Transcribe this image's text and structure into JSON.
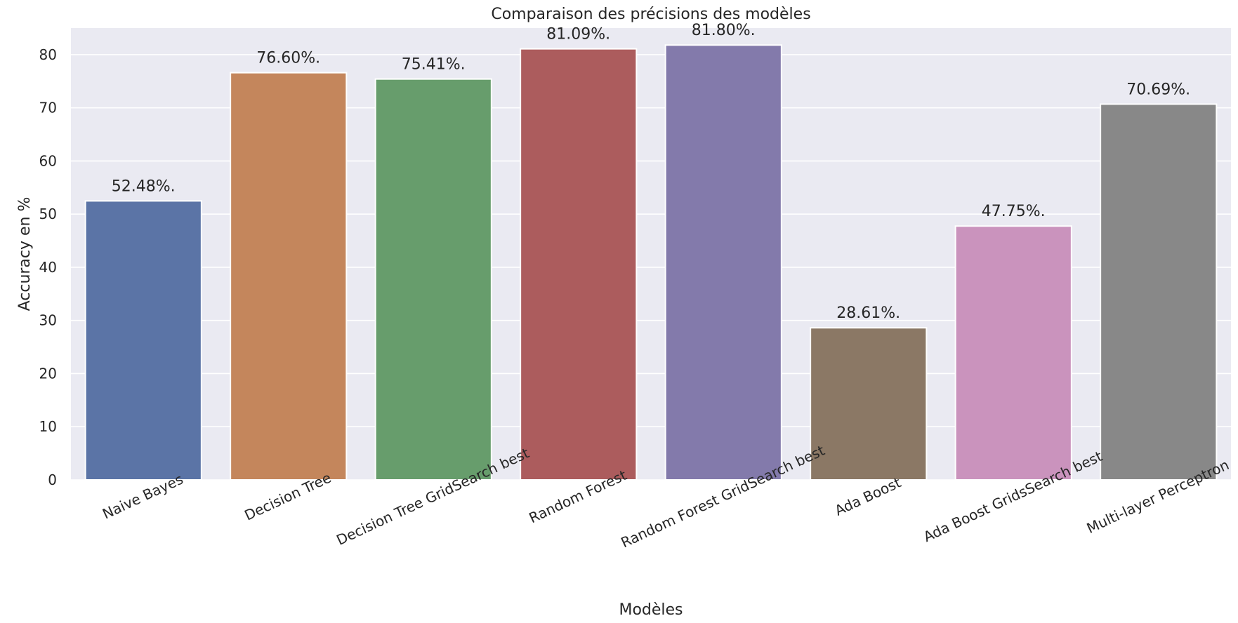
{
  "chart_data": {
    "type": "bar",
    "title": "Comparaison des précisions des modèles",
    "xlabel": "Modèles",
    "ylabel": "Accuracy en %",
    "ylim": [
      0,
      85
    ],
    "yticks": [
      0,
      10,
      20,
      30,
      40,
      50,
      60,
      70,
      80
    ],
    "grid": true,
    "categories": [
      "Naive Bayes",
      "Decision Tree",
      "Decision Tree GridSearch best",
      "Random Forest",
      "Random Forest GridSearch best",
      "Ada Boost",
      "Ada Boost GridsSearch best",
      "Multi-layer Perceptron"
    ],
    "values": [
      52.48,
      76.6,
      75.41,
      81.09,
      81.8,
      28.61,
      47.75,
      70.69
    ],
    "data_labels": [
      "52.48%.",
      "76.60%.",
      "75.41%.",
      "81.09%.",
      "81.80%.",
      "28.61%.",
      "47.75%.",
      "70.69%."
    ],
    "colors": [
      "#5b74a6",
      "#c4865c",
      "#679d6c",
      "#ac5c5d",
      "#837aab",
      "#8b7865",
      "#ca93bd",
      "#888888"
    ],
    "background_color": "#eaeaf2",
    "grid_color": "#ffffff"
  }
}
